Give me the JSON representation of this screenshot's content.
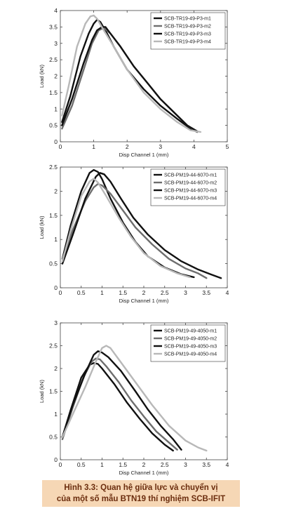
{
  "caption": {
    "line1": "Hình 3.3: Quan hệ giữa lực và chuyển vị",
    "line2": "của một số mẫu BTN19 thí nghiệm SCB-IFIT"
  },
  "chart_data": [
    {
      "type": "line",
      "xlabel": "Disp Channel 1 (mm)",
      "ylabel": "Load (kN)",
      "xlim": [
        0,
        5
      ],
      "ylim": [
        0,
        4
      ],
      "xticks": [
        0,
        1,
        2,
        3,
        4,
        5
      ],
      "yticks": [
        0,
        0.5,
        1,
        1.5,
        2,
        2.5,
        3,
        3.5,
        4
      ],
      "grid": false,
      "legend": "top-right",
      "series": [
        {
          "name": "SCB-TR19-49-P3-m1",
          "color": "#111111",
          "x": [
            0.05,
            0.3,
            0.6,
            0.85,
            1.0,
            1.1,
            1.2,
            1.4,
            1.6,
            2.0,
            2.5,
            3.0,
            3.5,
            3.9,
            4.1
          ],
          "y": [
            0.6,
            1.4,
            2.6,
            3.3,
            3.6,
            3.72,
            3.65,
            3.3,
            2.9,
            2.2,
            1.6,
            1.1,
            0.7,
            0.4,
            0.3
          ]
        },
        {
          "name": "SCB-TR19-49-P3-m2",
          "color": "#6e6e6e",
          "x": [
            0.05,
            0.35,
            0.7,
            0.95,
            1.15,
            1.3,
            1.5,
            1.8,
            2.2,
            2.6,
            3.0,
            3.4,
            3.8,
            4.1
          ],
          "y": [
            0.4,
            1.1,
            2.2,
            3.0,
            3.4,
            3.47,
            3.3,
            2.9,
            2.3,
            1.8,
            1.3,
            0.9,
            0.5,
            0.3
          ]
        },
        {
          "name": "SCB-TR19-49-P3-m3",
          "color": "#111111",
          "x": [
            0.05,
            0.35,
            0.7,
            0.95,
            1.1,
            1.25,
            1.35,
            1.5,
            1.8,
            2.2,
            2.6,
            3.0,
            3.4,
            3.8,
            4.1
          ],
          "y": [
            0.5,
            1.3,
            2.4,
            3.1,
            3.4,
            3.5,
            3.5,
            3.3,
            2.9,
            2.3,
            1.8,
            1.3,
            0.9,
            0.5,
            0.32
          ]
        },
        {
          "name": "SCB-TR19-49-P3-m4",
          "color": "#b8b8b8",
          "x": [
            0.05,
            0.25,
            0.5,
            0.75,
            0.9,
            1.0,
            1.1,
            1.3,
            1.6,
            2.0,
            2.5,
            3.0,
            3.5,
            3.9,
            4.2
          ],
          "y": [
            0.8,
            1.7,
            2.9,
            3.6,
            3.82,
            3.85,
            3.75,
            3.4,
            2.9,
            2.2,
            1.5,
            1.0,
            0.6,
            0.35,
            0.3
          ]
        }
      ]
    },
    {
      "type": "line",
      "xlabel": "Disp Channel 1 (mm)",
      "ylabel": "Load (kN)",
      "xlim": [
        0,
        4
      ],
      "ylim": [
        0,
        2.5
      ],
      "xticks": [
        0,
        0.5,
        1,
        1.5,
        2,
        2.5,
        3,
        3.5,
        4
      ],
      "yticks": [
        0,
        0.5,
        1,
        1.5,
        2,
        2.5
      ],
      "grid": false,
      "legend": "top-right",
      "series": [
        {
          "name": "SCB-PM19-44-6070-m1",
          "color": "#111111",
          "x": [
            0.05,
            0.25,
            0.5,
            0.7,
            0.8,
            0.9,
            1.0,
            1.2,
            1.5,
            1.8,
            2.1,
            2.5,
            2.9,
            3.2
          ],
          "y": [
            0.6,
            1.3,
            2.0,
            2.38,
            2.44,
            2.4,
            2.25,
            1.85,
            1.35,
            0.95,
            0.65,
            0.42,
            0.28,
            0.22
          ]
        },
        {
          "name": "SCB-PM19-44-6070-m2",
          "color": "#6e6e6e",
          "x": [
            0.05,
            0.3,
            0.6,
            0.8,
            0.9,
            1.0,
            1.2,
            1.5,
            1.8,
            2.2,
            2.6,
            3.0,
            3.3,
            3.5
          ],
          "y": [
            0.6,
            1.2,
            1.8,
            2.08,
            2.15,
            2.12,
            1.95,
            1.6,
            1.25,
            0.9,
            0.6,
            0.4,
            0.3,
            0.2
          ]
        },
        {
          "name": "SCB-PM19-44-6070-m3",
          "color": "#111111",
          "x": [
            0.05,
            0.3,
            0.6,
            0.85,
            0.95,
            1.05,
            1.2,
            1.45,
            1.75,
            2.1,
            2.5,
            2.9,
            3.3,
            3.6,
            3.85
          ],
          "y": [
            0.5,
            1.1,
            1.85,
            2.3,
            2.38,
            2.35,
            2.2,
            1.85,
            1.45,
            1.1,
            0.78,
            0.55,
            0.38,
            0.28,
            0.2
          ]
        },
        {
          "name": "SCB-PM19-44-6070-m4",
          "color": "#b8b8b8",
          "x": [
            0.05,
            0.25,
            0.5,
            0.7,
            0.8,
            0.9,
            1.1,
            1.4,
            1.7,
            2.0,
            2.4,
            2.8,
            3.1
          ],
          "y": [
            0.55,
            1.2,
            1.9,
            2.2,
            2.26,
            2.18,
            1.9,
            1.45,
            1.05,
            0.72,
            0.45,
            0.3,
            0.22
          ]
        }
      ]
    },
    {
      "type": "line",
      "xlabel": "Disp Channel 1 (mm)",
      "ylabel": "Load (kN)",
      "xlim": [
        0,
        4
      ],
      "ylim": [
        0,
        3
      ],
      "xticks": [
        0,
        0.5,
        1,
        1.5,
        2,
        2.5,
        3,
        3.5,
        4
      ],
      "yticks": [
        0,
        0.5,
        1,
        1.5,
        2,
        2.5,
        3
      ],
      "grid": false,
      "legend": "top-right",
      "series": [
        {
          "name": "SCB-PM19-49-4050-m1",
          "color": "#111111",
          "x": [
            0.05,
            0.25,
            0.5,
            0.7,
            0.8,
            0.9,
            1.0,
            1.3,
            1.6,
            1.9,
            2.2,
            2.5,
            2.7
          ],
          "y": [
            0.5,
            1.1,
            1.8,
            2.08,
            2.12,
            2.1,
            2.0,
            1.65,
            1.25,
            0.9,
            0.58,
            0.33,
            0.2
          ]
        },
        {
          "name": "SCB-PM19-49-4050-m2",
          "color": "#6e6e6e",
          "x": [
            0.05,
            0.3,
            0.55,
            0.75,
            0.85,
            0.95,
            1.1,
            1.4,
            1.7,
            2.0,
            2.3,
            2.6,
            2.8
          ],
          "y": [
            0.45,
            1.15,
            1.8,
            2.15,
            2.22,
            2.2,
            2.05,
            1.7,
            1.3,
            0.95,
            0.62,
            0.38,
            0.22
          ]
        },
        {
          "name": "SCB-PM19-49-4050-m3",
          "color": "#111111",
          "x": [
            0.05,
            0.3,
            0.6,
            0.8,
            0.9,
            1.0,
            1.15,
            1.45,
            1.8,
            2.1,
            2.4,
            2.7,
            2.9
          ],
          "y": [
            0.5,
            1.2,
            1.9,
            2.3,
            2.38,
            2.35,
            2.25,
            1.95,
            1.5,
            1.1,
            0.75,
            0.45,
            0.22
          ]
        },
        {
          "name": "SCB-PM19-49-4050-m4",
          "color": "#b8b8b8",
          "x": [
            0.05,
            0.3,
            0.6,
            0.85,
            1.0,
            1.1,
            1.2,
            1.4,
            1.8,
            2.2,
            2.6,
            3.0,
            3.3,
            3.5
          ],
          "y": [
            0.5,
            1.0,
            1.6,
            2.15,
            2.45,
            2.5,
            2.45,
            2.2,
            1.7,
            1.2,
            0.75,
            0.42,
            0.27,
            0.2
          ]
        }
      ]
    }
  ]
}
